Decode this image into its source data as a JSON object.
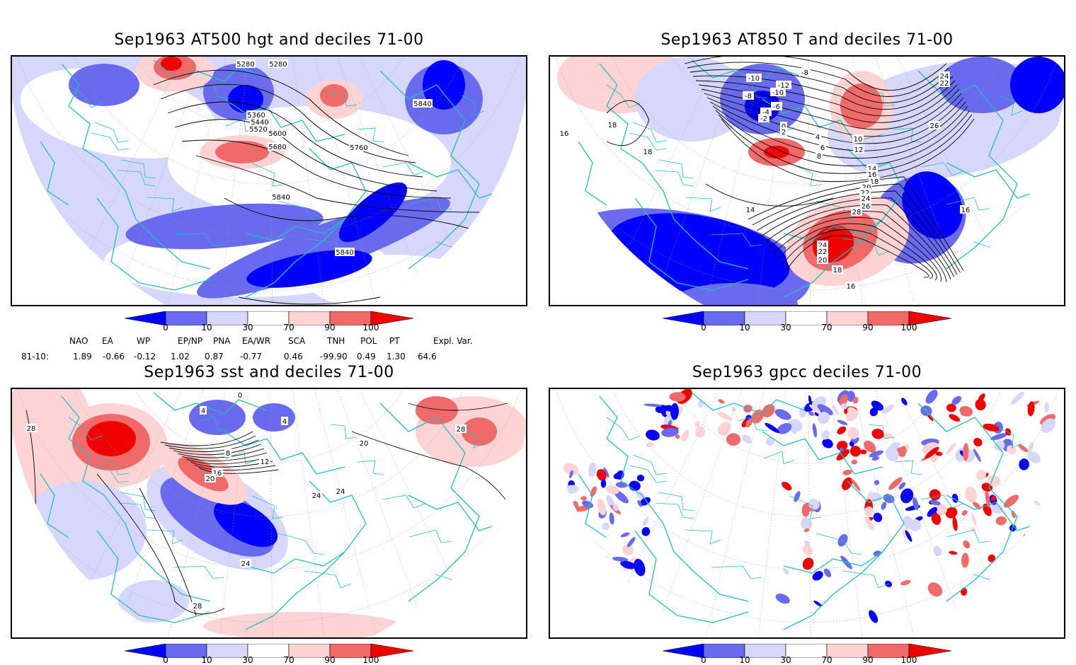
{
  "colors": {
    "dark_blue": "#0000ff",
    "mid_blue": "#6a6aef",
    "light_blue": "#d6d7fb",
    "light_red": "#fdd3d3",
    "mid_red": "#f06a6a",
    "dark_red": "#f00000",
    "coast": "#22bebe",
    "contour": "#000000"
  },
  "panels": [
    {
      "title": "Sep1963 AT500 hgt and deciles 71-00",
      "contour_labels": [
        "5280",
        "5280",
        "5360",
        "5440",
        "5520",
        "5600",
        "5680",
        "5760",
        "5840",
        "5840",
        "5840"
      ]
    },
    {
      "title": "Sep1963 AT850 T and deciles 71-00",
      "contour_labels": [
        "-10",
        "-8",
        "-10",
        "-12",
        "-8",
        "-6",
        "-4",
        "-2",
        "0",
        "2",
        "4",
        "6",
        "8",
        "10",
        "12",
        "14",
        "16",
        "18",
        "20",
        "22",
        "24",
        "26",
        "28",
        "24",
        "22",
        "20",
        "18",
        "16",
        "14",
        "16",
        "18",
        "18",
        "16",
        "26",
        "22",
        "24"
      ]
    },
    {
      "title": "Sep1963 sst and deciles 71-00",
      "contour_labels": [
        "0",
        "4",
        "4",
        "8",
        "12",
        "16",
        "20",
        "24",
        "24",
        "24",
        "28",
        "28",
        "28",
        "20"
      ]
    },
    {
      "title": "Sep1963 gpcc deciles 71-00",
      "contour_labels": []
    }
  ],
  "colorbar": {
    "ticks": [
      "0",
      "10",
      "30",
      "70",
      "90",
      "100"
    ]
  },
  "indices": {
    "headers": [
      "NAO",
      "EA",
      "WP",
      "EP/NP",
      "PNA",
      "EA/WR",
      "SCA",
      "TNH",
      "POL",
      "PT",
      "Expl. Var."
    ],
    "row_label": "81-10:",
    "values": [
      "1.89",
      "-0.66",
      "-0.12",
      "1.02",
      "0.87",
      "-0.77",
      "0.46",
      "-99.90",
      "0.49",
      "1.30",
      "64.6"
    ]
  }
}
